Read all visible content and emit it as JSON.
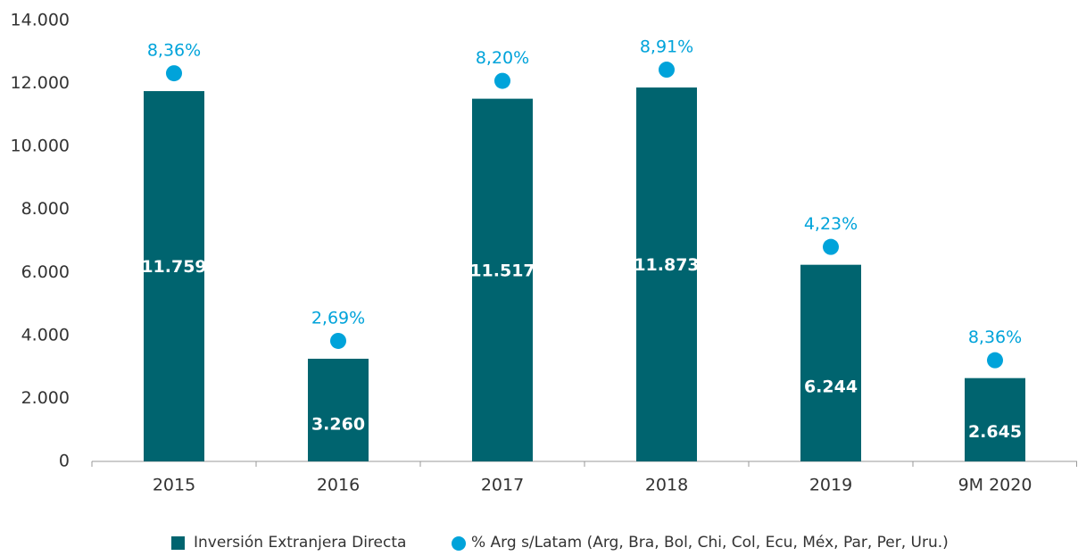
{
  "chart_data": {
    "type": "bar",
    "categories": [
      "2015",
      "2016",
      "2017",
      "2018",
      "2019",
      "9M 2020"
    ],
    "series": [
      {
        "name": "Inversión Extranjera Directa",
        "color": "#00646f",
        "values": [
          11759,
          3260,
          11517,
          11873,
          6244,
          2645
        ],
        "value_labels": [
          "11.759",
          "3.260",
          "11.517",
          "11.873",
          "6.244",
          "2.645"
        ]
      },
      {
        "name": "% Arg s/Latam (Arg, Bra, Bol, Chi, Col, Ecu, Méx, Par, Per, Uru.)",
        "color": "#00a3da",
        "values": [
          8.36,
          2.69,
          8.2,
          8.91,
          4.23,
          8.36
        ],
        "value_labels": [
          "8,36%",
          "2,69%",
          "8,20%",
          "8,91%",
          "4,23%",
          "8,36%"
        ]
      }
    ],
    "ylim": [
      0,
      14000
    ],
    "yticks": [
      {
        "value": 0,
        "label": "0"
      },
      {
        "value": 2000,
        "label": "2.000"
      },
      {
        "value": 4000,
        "label": "4.000"
      },
      {
        "value": 6000,
        "label": "6.000"
      },
      {
        "value": 8000,
        "label": "8.000"
      },
      {
        "value": 10000,
        "label": "10.000"
      },
      {
        "value": 12000,
        "label": "12.000"
      },
      {
        "value": 14000,
        "label": "14.000"
      }
    ],
    "grid": false,
    "legend": "bottom"
  }
}
